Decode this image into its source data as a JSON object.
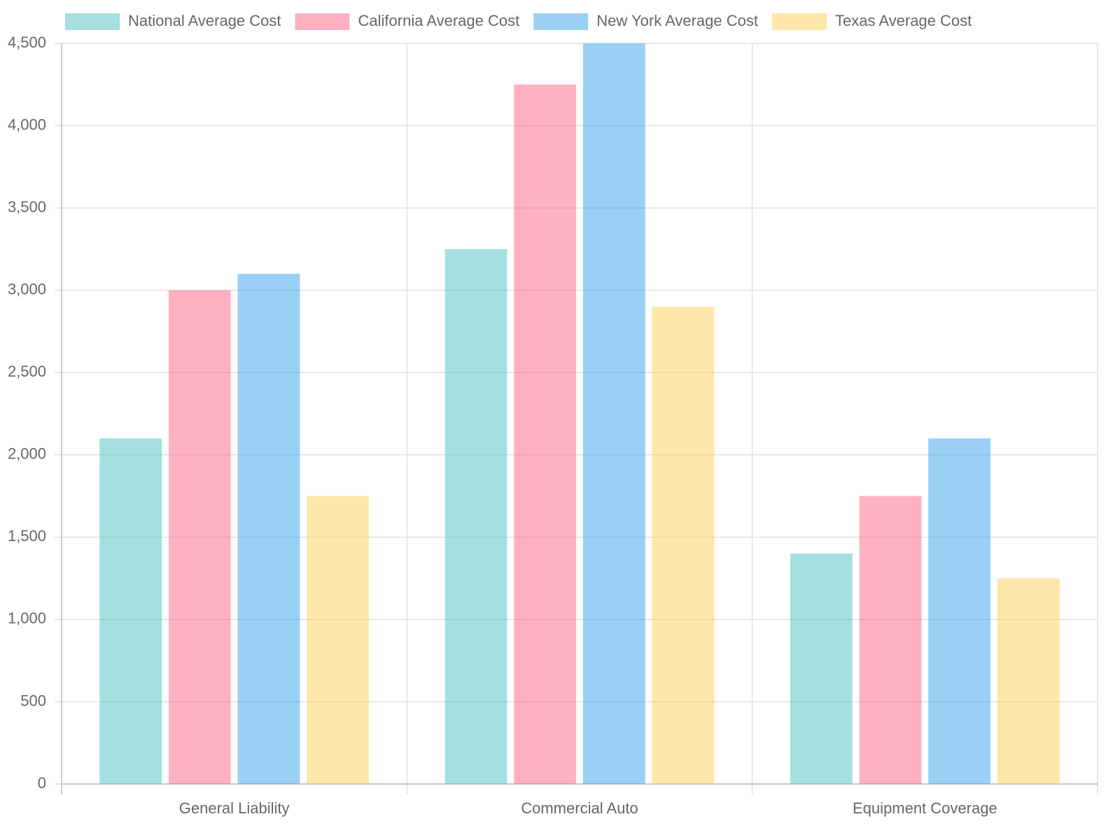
{
  "chart_data": {
    "type": "bar",
    "categories": [
      "General Liability",
      "Commercial Auto",
      "Equipment Coverage"
    ],
    "series": [
      {
        "name": "National Average Cost",
        "color": "rgba(75, 192, 192, 0.5)",
        "values": [
          2100,
          3250,
          1400
        ]
      },
      {
        "name": "California Average Cost",
        "color": "rgba(255, 99, 132, 0.5)",
        "values": [
          3000,
          4250,
          1750
        ]
      },
      {
        "name": "New York Average Cost",
        "color": "rgba(54, 162, 235, 0.5)",
        "values": [
          3100,
          4500,
          2100
        ]
      },
      {
        "name": "Texas Average Cost",
        "color": "rgba(255, 206, 86, 0.5)",
        "values": [
          1750,
          2900,
          1250
        ]
      }
    ],
    "ylim": [
      0,
      4500
    ],
    "yticks": [
      0,
      500,
      {
        "value": 1000,
        "label": "1,000"
      },
      {
        "value": 1500,
        "label": "1,500"
      },
      {
        "value": 2000,
        "label": "2,000"
      },
      {
        "value": 2500,
        "label": "2,500"
      },
      {
        "value": 3000,
        "label": "3,000"
      },
      {
        "value": 3500,
        "label": "3,500"
      },
      {
        "value": 4000,
        "label": "4,000"
      },
      {
        "value": 4500,
        "label": "4,500"
      }
    ],
    "grid": true,
    "legend": "top"
  }
}
